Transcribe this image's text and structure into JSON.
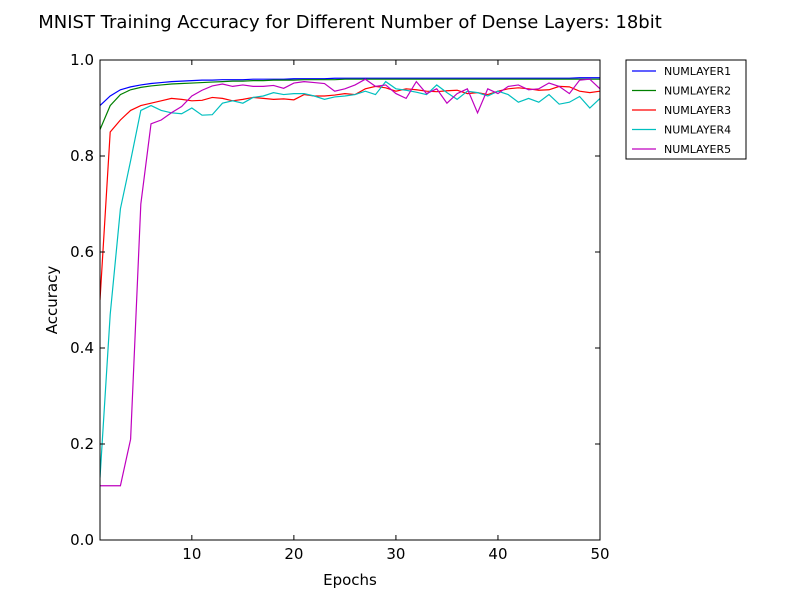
{
  "chart_data": {
    "type": "line",
    "title": "MNIST Training Accuracy for Different Number of Dense Layers: 18bit",
    "xlabel": "Epochs",
    "ylabel": "Accuracy",
    "xlim": [
      1,
      50
    ],
    "ylim": [
      0.0,
      1.0
    ],
    "xticks": [
      10,
      20,
      30,
      40,
      50
    ],
    "yticks": [
      0.0,
      0.2,
      0.4,
      0.6,
      0.8,
      1.0
    ],
    "xtick_labels": [
      "10",
      "20",
      "30",
      "40",
      "50"
    ],
    "ytick_labels": [
      "0.0",
      "0.2",
      "0.4",
      "0.6",
      "0.8",
      "1.0"
    ],
    "grid": false,
    "legend_position": "outside-right-top",
    "x": [
      1,
      2,
      3,
      4,
      5,
      6,
      7,
      8,
      9,
      10,
      11,
      12,
      13,
      14,
      15,
      16,
      17,
      18,
      19,
      20,
      21,
      22,
      23,
      24,
      25,
      26,
      27,
      28,
      29,
      30,
      31,
      32,
      33,
      34,
      35,
      36,
      37,
      38,
      39,
      40,
      41,
      42,
      43,
      44,
      45,
      46,
      47,
      48,
      49,
      50
    ],
    "series": [
      {
        "name": "NUMLAYER1",
        "color": "#0000ff",
        "values": [
          0.905,
          0.925,
          0.938,
          0.944,
          0.948,
          0.951,
          0.953,
          0.955,
          0.956,
          0.957,
          0.958,
          0.958,
          0.959,
          0.959,
          0.959,
          0.96,
          0.96,
          0.96,
          0.96,
          0.961,
          0.961,
          0.961,
          0.961,
          0.962,
          0.962,
          0.962,
          0.962,
          0.962,
          0.962,
          0.962,
          0.962,
          0.962,
          0.962,
          0.962,
          0.962,
          0.962,
          0.962,
          0.962,
          0.962,
          0.962,
          0.962,
          0.962,
          0.962,
          0.962,
          0.962,
          0.962,
          0.962,
          0.963,
          0.963,
          0.963
        ]
      },
      {
        "name": "NUMLAYER2",
        "color": "#008000",
        "values": [
          0.855,
          0.905,
          0.928,
          0.938,
          0.943,
          0.946,
          0.948,
          0.95,
          0.951,
          0.952,
          0.953,
          0.954,
          0.955,
          0.956,
          0.956,
          0.957,
          0.957,
          0.958,
          0.958,
          0.958,
          0.959,
          0.959,
          0.959,
          0.959,
          0.96,
          0.96,
          0.96,
          0.96,
          0.96,
          0.96,
          0.96,
          0.96,
          0.96,
          0.96,
          0.96,
          0.96,
          0.96,
          0.96,
          0.96,
          0.96,
          0.96,
          0.96,
          0.96,
          0.96,
          0.96,
          0.96,
          0.96,
          0.96,
          0.96,
          0.96
        ]
      },
      {
        "name": "NUMLAYER3",
        "color": "#ff0000",
        "values": [
          0.5,
          0.85,
          0.875,
          0.895,
          0.905,
          0.91,
          0.915,
          0.92,
          0.918,
          0.915,
          0.916,
          0.922,
          0.92,
          0.915,
          0.918,
          0.922,
          0.92,
          0.918,
          0.919,
          0.917,
          0.928,
          0.925,
          0.925,
          0.927,
          0.93,
          0.928,
          0.94,
          0.945,
          0.942,
          0.935,
          0.94,
          0.938,
          0.935,
          0.934,
          0.936,
          0.937,
          0.93,
          0.932,
          0.928,
          0.935,
          0.94,
          0.942,
          0.94,
          0.937,
          0.938,
          0.945,
          0.944,
          0.935,
          0.932,
          0.935
        ]
      },
      {
        "name": "NUMLAYER4",
        "color": "#00bfbf",
        "values": [
          0.13,
          0.47,
          0.69,
          0.79,
          0.895,
          0.905,
          0.895,
          0.89,
          0.888,
          0.9,
          0.885,
          0.886,
          0.91,
          0.915,
          0.91,
          0.922,
          0.925,
          0.932,
          0.928,
          0.93,
          0.93,
          0.925,
          0.918,
          0.923,
          0.925,
          0.928,
          0.935,
          0.928,
          0.955,
          0.94,
          0.937,
          0.933,
          0.928,
          0.948,
          0.932,
          0.918,
          0.935,
          0.932,
          0.925,
          0.935,
          0.928,
          0.912,
          0.92,
          0.912,
          0.928,
          0.908,
          0.912,
          0.924,
          0.9,
          0.92
        ]
      },
      {
        "name": "NUMLAYER5",
        "color": "#bf00bf",
        "values": [
          0.113,
          0.113,
          0.113,
          0.21,
          0.7,
          0.867,
          0.875,
          0.89,
          0.903,
          0.925,
          0.937,
          0.946,
          0.95,
          0.945,
          0.948,
          0.945,
          0.945,
          0.947,
          0.941,
          0.952,
          0.955,
          0.953,
          0.951,
          0.935,
          0.94,
          0.948,
          0.96,
          0.945,
          0.948,
          0.93,
          0.92,
          0.955,
          0.93,
          0.94,
          0.91,
          0.93,
          0.94,
          0.89,
          0.94,
          0.93,
          0.945,
          0.948,
          0.938,
          0.94,
          0.952,
          0.945,
          0.93,
          0.958,
          0.96,
          0.94
        ]
      }
    ]
  }
}
